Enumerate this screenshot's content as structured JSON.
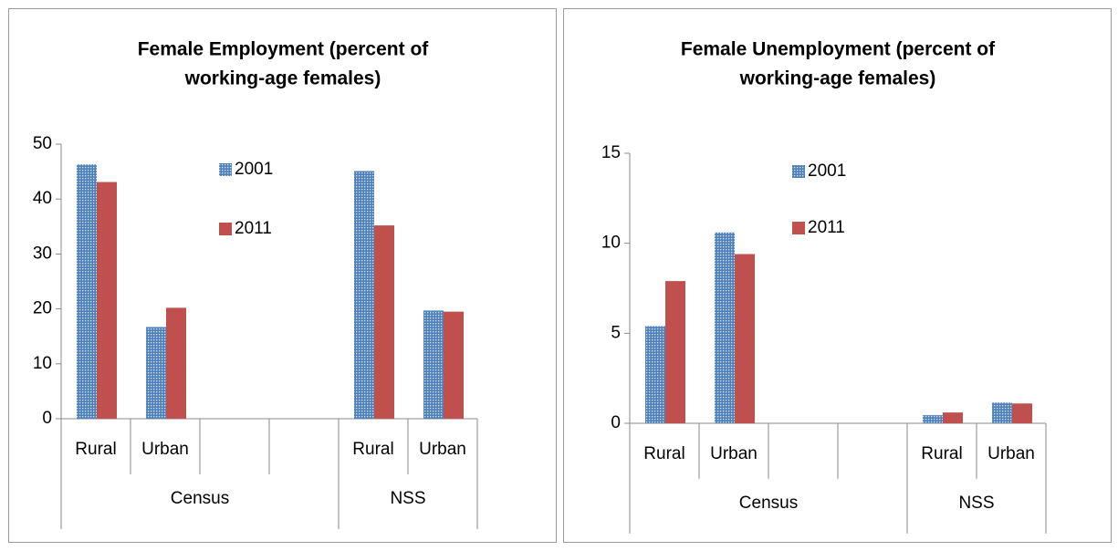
{
  "chart_data": [
    {
      "type": "bar",
      "title": [
        "Female Employment (percent of",
        "working-age females)"
      ],
      "groups": [
        {
          "name": "Census",
          "categories": [
            "Rural",
            "Urban",
            null,
            null
          ]
        },
        {
          "name": "NSS",
          "categories": [
            "Rural",
            "Urban"
          ]
        }
      ],
      "series": [
        {
          "name": "2001",
          "color": "#4f81bd",
          "values": [
            46.3,
            16.7,
            null,
            null,
            45.1,
            19.7
          ]
        },
        {
          "name": "2011",
          "color": "#c0504d",
          "values": [
            43.1,
            20.2,
            null,
            null,
            35.2,
            19.5
          ]
        }
      ],
      "ylim": [
        0,
        50
      ],
      "yticks": [
        0,
        10,
        20,
        30,
        40,
        50
      ],
      "grid": false
    },
    {
      "type": "bar",
      "title": [
        "Female Unemployment (percent of",
        "working-age females)"
      ],
      "groups": [
        {
          "name": "Census",
          "categories": [
            "Rural",
            "Urban",
            null,
            null
          ]
        },
        {
          "name": "NSS",
          "categories": [
            "Rural",
            "Urban"
          ]
        }
      ],
      "series": [
        {
          "name": "2001",
          "color": "#4f81bd",
          "values": [
            5.4,
            10.6,
            null,
            null,
            0.45,
            1.15
          ]
        },
        {
          "name": "2011",
          "color": "#c0504d",
          "values": [
            7.9,
            9.4,
            null,
            null,
            0.6,
            1.1
          ]
        }
      ],
      "ylim": [
        0,
        15
      ],
      "yticks": [
        0,
        5,
        10,
        15
      ],
      "grid": false
    }
  ]
}
